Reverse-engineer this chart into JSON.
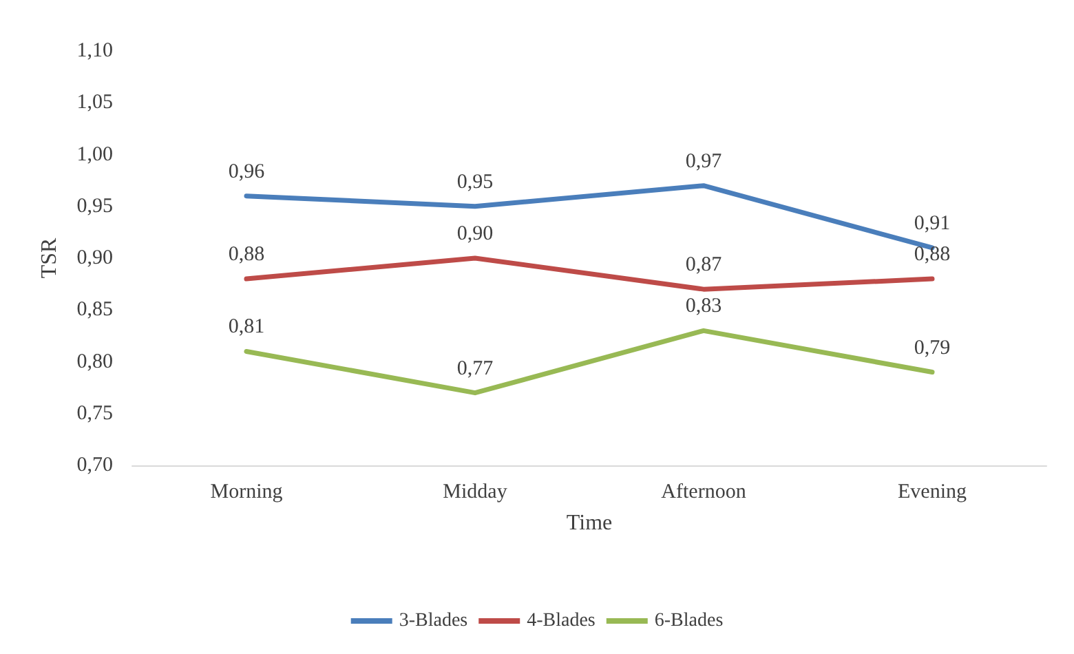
{
  "chart_data": {
    "type": "line",
    "xlabel": "Time",
    "ylabel": "TSR",
    "categories": [
      "Morning",
      "Midday",
      "Afternoon",
      "Evening"
    ],
    "series": [
      {
        "name": "3-Blades",
        "color": "#4a7ebb",
        "values": [
          0.96,
          0.95,
          0.97,
          0.91
        ],
        "value_labels": [
          "0,96",
          "0,95",
          "0,97",
          "0,91"
        ]
      },
      {
        "name": "4-Blades",
        "color": "#be4b48",
        "values": [
          0.88,
          0.9,
          0.87,
          0.88
        ],
        "value_labels": [
          "0,88",
          "0,90",
          "0,87",
          "0,88"
        ]
      },
      {
        "name": "6-Blades",
        "color": "#98b954",
        "values": [
          0.81,
          0.77,
          0.83,
          0.79
        ],
        "value_labels": [
          "0,81",
          "0,77",
          "0,83",
          "0,79"
        ]
      }
    ],
    "ylim": [
      0.7,
      1.1
    ],
    "yticks": [
      {
        "value": 0.7,
        "label": "0,70"
      },
      {
        "value": 0.75,
        "label": "0,75"
      },
      {
        "value": 0.8,
        "label": "0,80"
      },
      {
        "value": 0.85,
        "label": "0,85"
      },
      {
        "value": 0.9,
        "label": "0,90"
      },
      {
        "value": 0.95,
        "label": "0,95"
      },
      {
        "value": 1.0,
        "label": "1,00"
      },
      {
        "value": 1.05,
        "label": "1,05"
      },
      {
        "value": 1.1,
        "label": "1,10"
      }
    ],
    "grid": false,
    "legend": "bottom",
    "marker": "none",
    "line_style": "solid"
  }
}
